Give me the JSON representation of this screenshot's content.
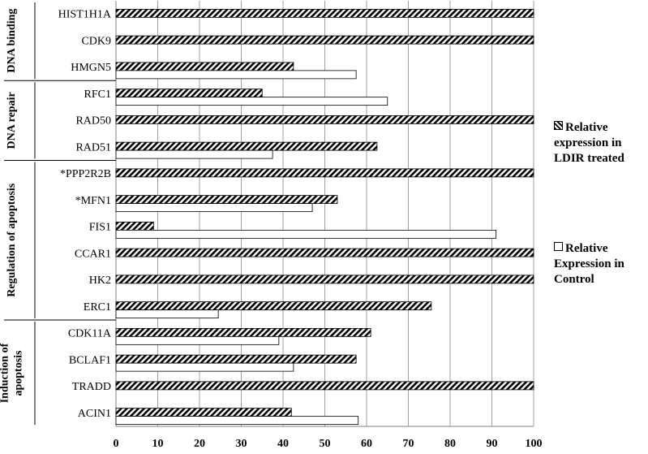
{
  "chart_data": {
    "type": "hbar",
    "categories": [
      "HIST1H1A",
      "CDK9",
      "HMGN5",
      "RFC1",
      "RAD50",
      "RAD51",
      "*PPP2R2B",
      "*MFN1",
      "FIS1",
      "CCAR1",
      "HK2",
      "ERC1",
      "CDK11A",
      "BCLAF1",
      "TRADD",
      "ACIN1"
    ],
    "series": [
      {
        "name": "Relative expression in LDIR treated",
        "color": "#000000",
        "fill": "hatch",
        "values": [
          100,
          100,
          42.5,
          35,
          100,
          62.5,
          100,
          53,
          9,
          100,
          100,
          75.5,
          61,
          57.5,
          100,
          42
        ]
      },
      {
        "name": "Relative Expression in Control",
        "color": "#ffffff",
        "fill": "solid",
        "values": [
          0,
          0,
          57.5,
          65,
          0,
          37.5,
          0,
          47,
          91,
          0,
          0,
          24.5,
          39,
          42.5,
          0,
          58
        ]
      }
    ],
    "groups": [
      {
        "label": [
          "DNA binding"
        ],
        "rows": 3
      },
      {
        "label": [
          "DNA repair"
        ],
        "rows": 3
      },
      {
        "label": [
          "Regulation of apoptosis"
        ],
        "rows": 6
      },
      {
        "label": [
          "Induction of",
          "apoptosis"
        ],
        "rows": 4
      }
    ],
    "xlim": [
      0,
      100
    ],
    "xticks": [
      0,
      10,
      20,
      30,
      40,
      50,
      60,
      70,
      80,
      90,
      100
    ],
    "grid": true,
    "legend": "right"
  }
}
